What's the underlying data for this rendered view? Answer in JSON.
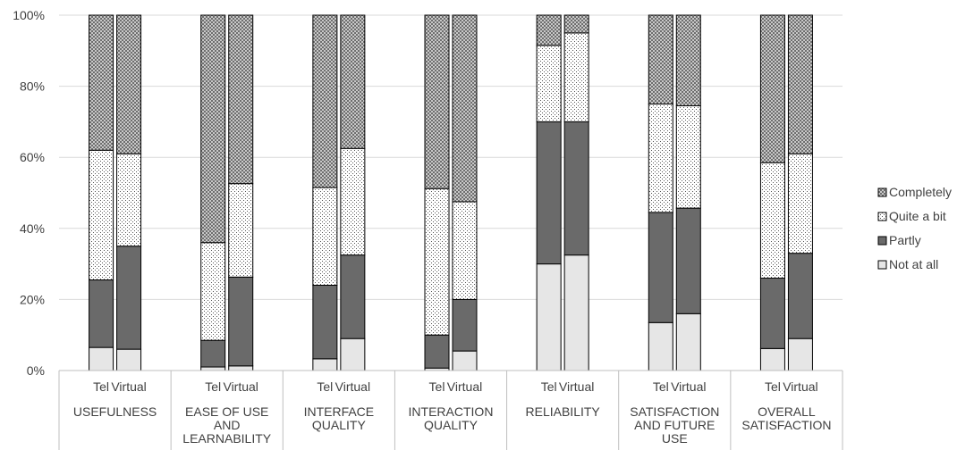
{
  "chart_data": {
    "type": "bar",
    "stacked": true,
    "percent_stacked": true,
    "yticks": [
      "0%",
      "20%",
      "40%",
      "60%",
      "80%",
      "100%"
    ],
    "ylim": [
      0,
      100
    ],
    "grid": true,
    "legend_position": "right",
    "groups": [
      {
        "label_lines": [
          "USEFULNESS"
        ],
        "bars": [
          "Tel",
          "Virtual"
        ]
      },
      {
        "label_lines": [
          "EASE OF USE",
          "AND",
          "LEARNABILITY"
        ],
        "bars": [
          "Tel",
          "Virtual"
        ]
      },
      {
        "label_lines": [
          "INTERFACE",
          "QUALITY"
        ],
        "bars": [
          "Tel",
          "Virtual"
        ]
      },
      {
        "label_lines": [
          "INTERACTION",
          "QUALITY"
        ],
        "bars": [
          "Tel",
          "Virtual"
        ]
      },
      {
        "label_lines": [
          "RELIABILITY"
        ],
        "bars": [
          "Tel",
          "Virtual"
        ]
      },
      {
        "label_lines": [
          "SATISFACTION",
          "AND FUTURE",
          "USE"
        ],
        "bars": [
          "Tel",
          "Virtual"
        ]
      },
      {
        "label_lines": [
          "OVERALL",
          "SATISFACTION"
        ],
        "bars": [
          "Tel",
          "Virtual"
        ]
      }
    ],
    "series": [
      {
        "name": "Not at all",
        "pattern": "light",
        "values": [
          6.5,
          6,
          1,
          1.3,
          3.3,
          9,
          0.7,
          5.5,
          30,
          32.5,
          13.5,
          16,
          6.2,
          9
        ]
      },
      {
        "name": "Partly",
        "pattern": "dark",
        "values": [
          19,
          29,
          7.5,
          25,
          20.7,
          23.5,
          9.3,
          14.5,
          40,
          37.5,
          31,
          29.7,
          19.8,
          24
        ]
      },
      {
        "name": "Quite a bit",
        "pattern": "dots",
        "values": [
          36.5,
          26,
          27.5,
          26.3,
          27.5,
          30,
          41.2,
          27.5,
          21.5,
          25,
          30.5,
          28.8,
          32.5,
          28
        ]
      },
      {
        "name": "Completely",
        "pattern": "checker",
        "values": [
          38,
          39,
          64,
          47.4,
          48.5,
          37.5,
          48.8,
          52.5,
          8.5,
          5,
          25,
          25.5,
          41.5,
          39
        ]
      }
    ],
    "legend_order": [
      "Completely",
      "Quite a bit",
      "Partly",
      "Not at all"
    ]
  }
}
